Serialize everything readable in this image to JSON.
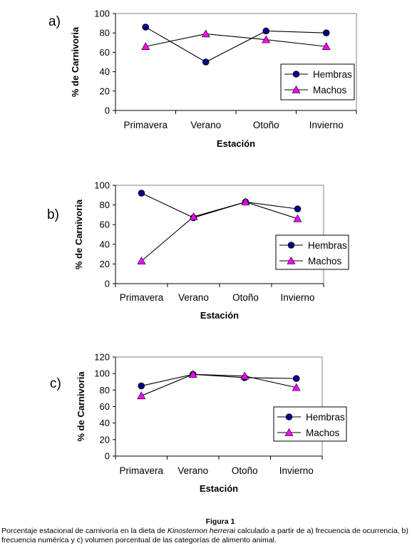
{
  "charts": [
    {
      "id": "a",
      "panel_label": "a)",
      "xlabel": "Estación",
      "ylabel": "% de Carnivoria",
      "categories": [
        "Primavera",
        "Verano",
        "Otoño",
        "Invierno"
      ],
      "ylim": [
        0,
        100
      ],
      "yticks": [
        0,
        20,
        40,
        60,
        80,
        100
      ],
      "legend_position": "right",
      "series": [
        {
          "name": "Hembras",
          "marker": "circle",
          "color": "#000080",
          "values": [
            86,
            50,
            82,
            80
          ]
        },
        {
          "name": "Machos",
          "marker": "triangle",
          "color": "#ff00ff",
          "values": [
            66,
            79,
            73,
            66
          ]
        }
      ]
    },
    {
      "id": "b",
      "panel_label": "b)",
      "xlabel": "Estación",
      "ylabel": "% de Carnivoria",
      "categories": [
        "Primavera",
        "Verano",
        "Otoño",
        "Invierno"
      ],
      "ylim": [
        0,
        100
      ],
      "yticks": [
        0,
        20,
        40,
        60,
        80,
        100
      ],
      "legend_position": "right",
      "series": [
        {
          "name": "Hembras",
          "marker": "circle",
          "color": "#000080",
          "values": [
            92,
            67,
            83,
            76
          ]
        },
        {
          "name": "Machos",
          "marker": "triangle",
          "color": "#ff00ff",
          "values": [
            23,
            68,
            83,
            66
          ]
        }
      ]
    },
    {
      "id": "c",
      "panel_label": "c)",
      "xlabel": "Estación",
      "ylabel": "% de Carnivoria",
      "categories": [
        "Primavera",
        "Verano",
        "Otoño",
        "Invierno"
      ],
      "ylim": [
        0,
        120
      ],
      "yticks": [
        0,
        20,
        40,
        60,
        80,
        100,
        120
      ],
      "legend_position": "right",
      "series": [
        {
          "name": "Hembras",
          "marker": "circle",
          "color": "#000080",
          "values": [
            85,
            99,
            95,
            94
          ]
        },
        {
          "name": "Machos",
          "marker": "triangle",
          "color": "#ff00ff",
          "values": [
            73,
            99,
            97,
            83
          ]
        }
      ]
    }
  ],
  "caption": {
    "title": "Figura 1",
    "text_before_species": "Porcentaje estacional de carnivoría en la dieta de ",
    "species": "Kinosternon herrerai",
    "text_after_species": " calculado a partir de  a) frecuencia de ocurrencia, b) frecuencia numérica y c) volumen porcentual de las categorías de alimento animal."
  }
}
